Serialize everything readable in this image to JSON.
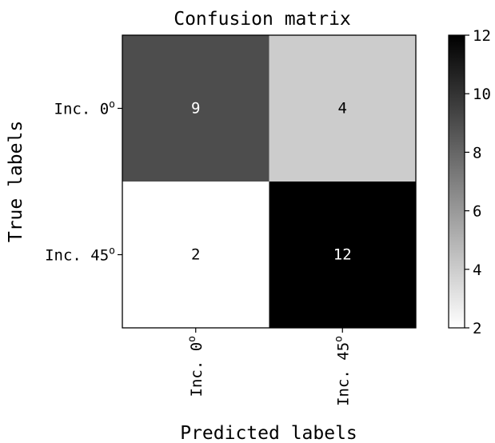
{
  "chart_data": {
    "type": "heatmap",
    "title": "Confusion matrix",
    "xlabel": "Predicted labels",
    "ylabel": "True labels",
    "x_categories": [
      {
        "base": "Inc. 0",
        "sup": "o"
      },
      {
        "base": "Inc. 45",
        "sup": "o"
      }
    ],
    "y_categories": [
      {
        "base": "Inc. 0",
        "sup": "o"
      },
      {
        "base": "Inc. 45",
        "sup": "o"
      }
    ],
    "matrix": [
      [
        9,
        4
      ],
      [
        2,
        12
      ]
    ],
    "colormap": "gray_r",
    "vmin": 2,
    "vmax": 12,
    "colorbar_ticks": [
      2,
      4,
      6,
      8,
      10,
      12
    ],
    "text_color_light": "#ffffff",
    "text_color_dark": "#000000"
  }
}
